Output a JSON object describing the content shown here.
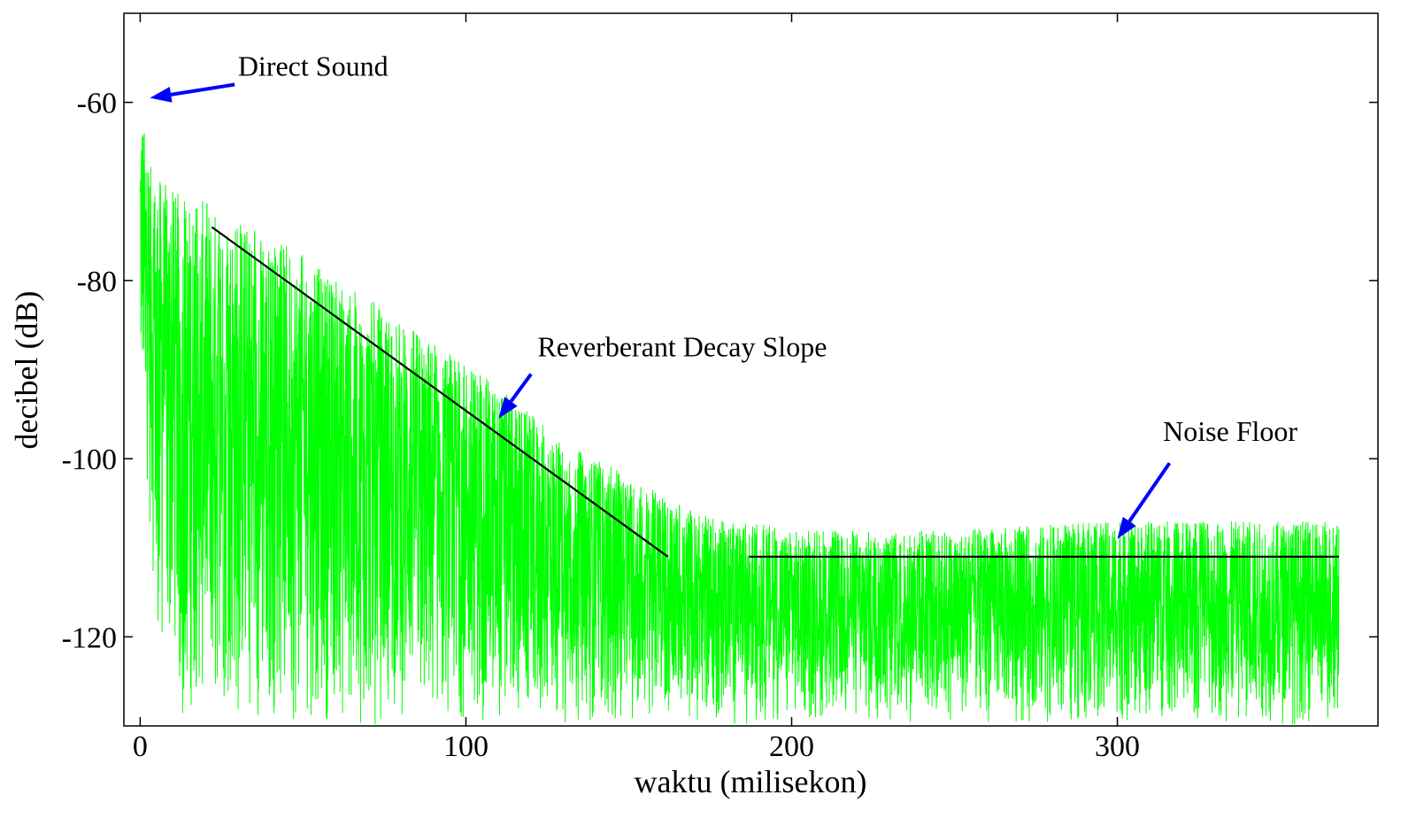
{
  "chart_data": {
    "type": "line",
    "title": "",
    "xlabel": "waktu (milisekon)",
    "ylabel": "decibel (dB)",
    "xlim": [
      -5,
      380
    ],
    "ylim": [
      -130,
      -50
    ],
    "xticks": [
      0,
      100,
      200,
      300
    ],
    "yticks": [
      -60,
      -80,
      -100,
      -120
    ],
    "grid": false,
    "legend": "none",
    "colors": {
      "signal": "#00ff00",
      "fit": "#000000",
      "arrow": "#0000ff",
      "axis": "#000000"
    },
    "series": [
      {
        "kind": "envelope",
        "x": [
          0,
          0.5,
          1,
          2,
          3,
          5,
          8,
          10,
          12,
          15,
          20,
          30,
          40,
          50,
          60,
          70,
          80,
          90,
          100,
          110,
          120,
          130,
          140,
          150,
          160,
          170,
          180,
          190,
          200,
          250,
          300,
          350,
          368
        ],
        "y_peak": [
          -60,
          -60.5,
          -62,
          -65,
          -67,
          -68,
          -69,
          -70,
          -70,
          -71,
          -71,
          -73,
          -75,
          -77,
          -80,
          -82,
          -84,
          -87,
          -89,
          -92,
          -95,
          -98,
          -100,
          -102,
          -104,
          -106,
          -107,
          -107,
          -108,
          -108,
          -107,
          -107,
          -107
        ],
        "y_floor": [
          -100,
          -95,
          -98,
          -102,
          -110,
          -120,
          -123,
          -127,
          -130,
          -130,
          -130,
          -130,
          -130,
          -130,
          -130,
          -130,
          -130,
          -130,
          -130,
          -130,
          -130,
          -130,
          -130,
          -130,
          -130,
          -130,
          -130,
          -130,
          -130,
          -130,
          -130,
          -130,
          -130
        ]
      },
      {
        "kind": "fit",
        "name": "",
        "x": [
          22,
          162
        ],
        "y": [
          -74,
          -111
        ]
      },
      {
        "kind": "fit",
        "name": "",
        "x": [
          187,
          368
        ],
        "y": [
          -111,
          -111
        ]
      }
    ],
    "annotations": [
      {
        "text": "Direct Sound",
        "x": 30,
        "y": -57,
        "arrow_to": [
          3,
          -59.5
        ],
        "arrow_from": [
          29,
          -58
        ]
      },
      {
        "text": "Reverberant Decay Slope",
        "x": 122,
        "y": -88.5,
        "arrow_to": [
          110,
          -95.5
        ],
        "arrow_from": [
          120,
          -90.5
        ]
      },
      {
        "text": "Noise Floor",
        "x": 314,
        "y": -98,
        "arrow_to": [
          300,
          -109
        ],
        "arrow_from": [
          316,
          -100.5
        ]
      }
    ]
  }
}
